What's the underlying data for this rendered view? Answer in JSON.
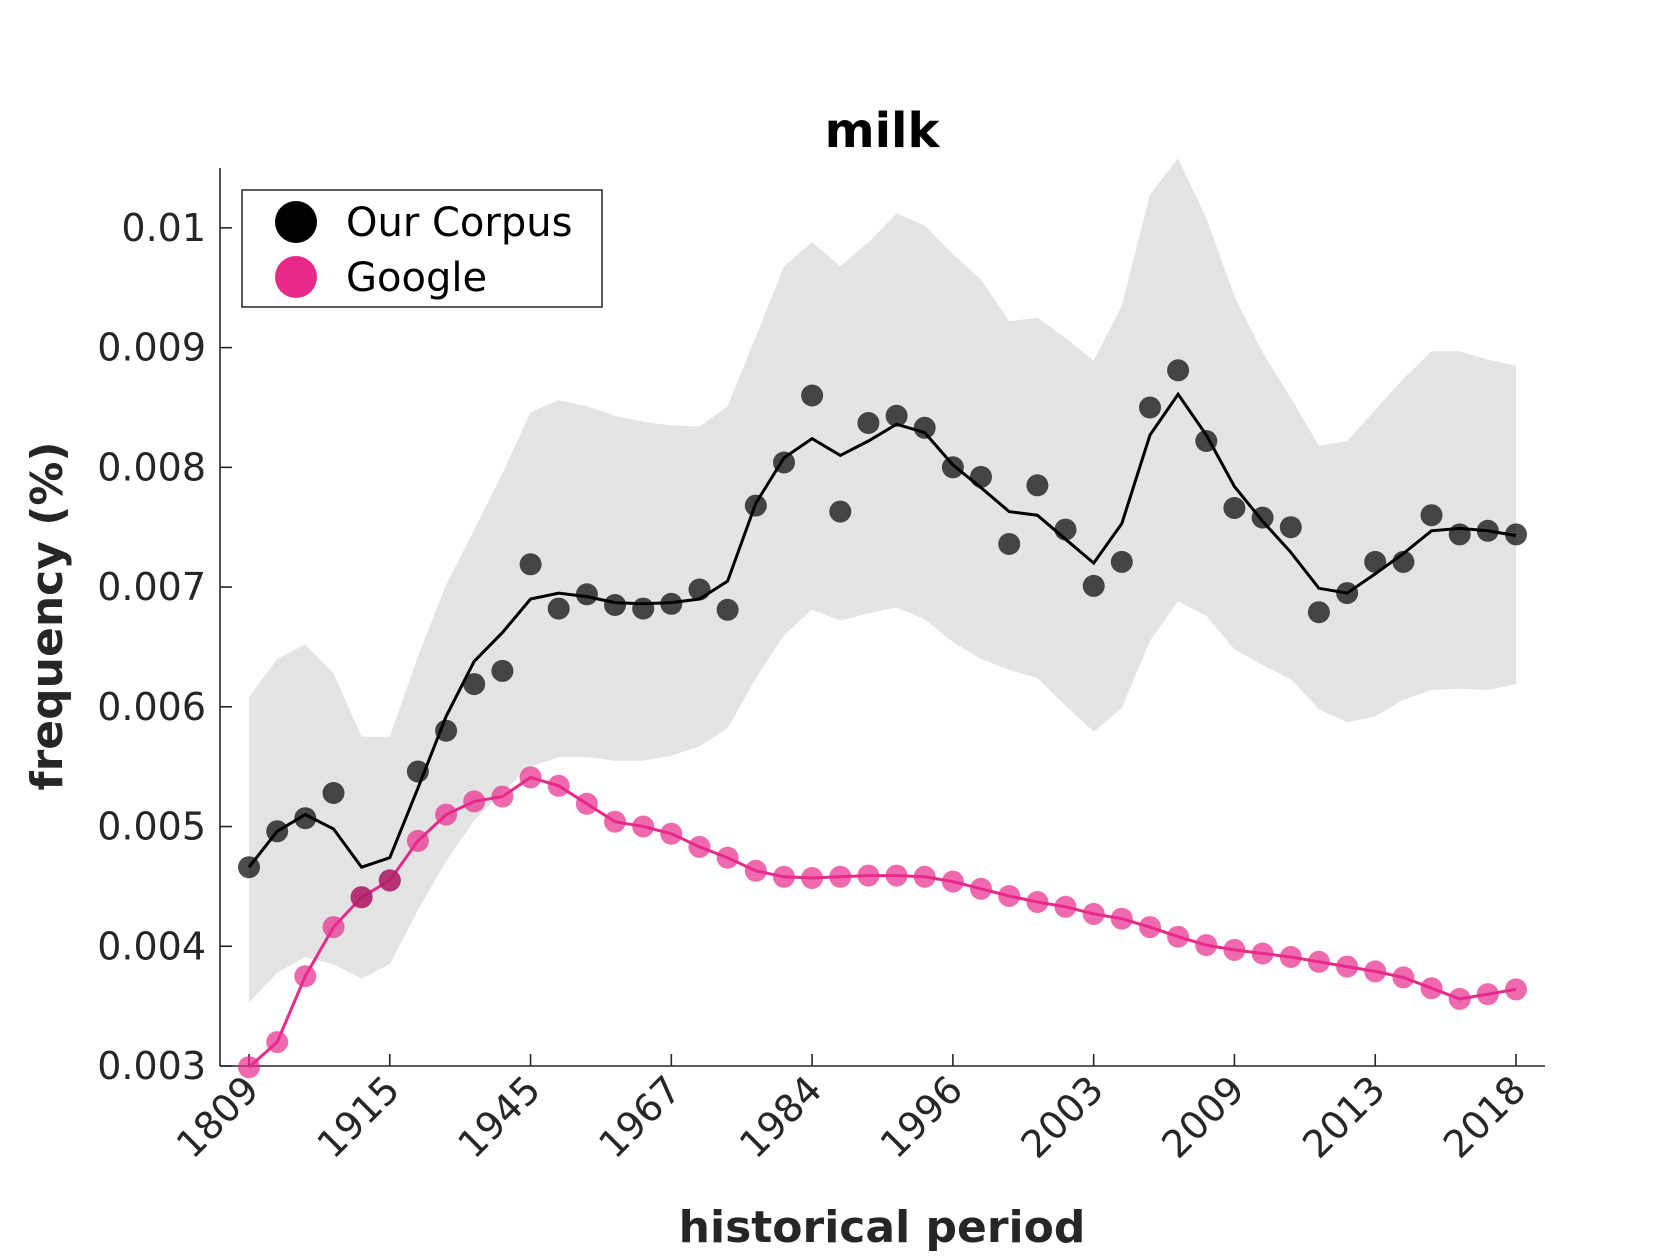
{
  "chart_data": {
    "type": "line",
    "title": "milk",
    "xlabel": "historical period",
    "ylabel": "frequency (%)",
    "ylim": [
      0.003,
      0.0105
    ],
    "y_ticks": [
      "0.003",
      "0.004",
      "0.005",
      "0.006",
      "0.007",
      "0.008",
      "0.009",
      "0.01"
    ],
    "y_tick_values": [
      0.003,
      0.004,
      0.005,
      0.006,
      0.007,
      0.008,
      0.009,
      0.01
    ],
    "x_tick_labels": [
      "1809",
      "1915",
      "1945",
      "1967",
      "1984",
      "1996",
      "2003",
      "2009",
      "2013",
      "2018"
    ],
    "x_tick_index": [
      1,
      6,
      11,
      16,
      21,
      26,
      31,
      36,
      41,
      46
    ],
    "x_count": 46,
    "legend_position": "top-left",
    "colors": {
      "corpus": "#000000",
      "google": "#e7298a",
      "band": "#e4e4e4"
    },
    "series": [
      {
        "name": "Our Corpus",
        "points": [
          0.00466,
          0.00496,
          0.00507,
          0.00528,
          0.00441,
          0.00455,
          0.00546,
          0.0058,
          0.00619,
          0.0063,
          0.00719,
          0.00682,
          0.00694,
          0.00685,
          0.00682,
          0.00686,
          0.00698,
          0.00681,
          0.00768,
          0.00804,
          0.0086,
          0.00763,
          0.00837,
          0.00843,
          0.00833,
          0.008,
          0.00792,
          0.00736,
          0.00785,
          0.00748,
          0.00701,
          0.00721,
          0.0085,
          0.00881,
          0.00822,
          0.00766,
          0.00758,
          0.0075,
          0.00679,
          0.00695,
          0.00721,
          0.00721,
          0.0076,
          0.00744,
          0.00747,
          0.00744
        ],
        "smooth": [
          0.00466,
          0.00496,
          0.0051,
          0.00498,
          0.00466,
          0.00474,
          0.00532,
          0.00592,
          0.00638,
          0.00662,
          0.0069,
          0.00695,
          0.00692,
          0.00687,
          0.00686,
          0.00687,
          0.0069,
          0.00705,
          0.0077,
          0.00808,
          0.00824,
          0.0081,
          0.00822,
          0.00836,
          0.00829,
          0.00802,
          0.00783,
          0.00763,
          0.0076,
          0.0074,
          0.0072,
          0.00753,
          0.00827,
          0.00861,
          0.00827,
          0.00784,
          0.00755,
          0.00729,
          0.00699,
          0.00695,
          0.00711,
          0.00728,
          0.00747,
          0.00749,
          0.00747,
          0.00743
        ],
        "band_upper": [
          0.00608,
          0.0064,
          0.00652,
          0.00628,
          0.00575,
          0.00575,
          0.00642,
          0.00702,
          0.00748,
          0.00795,
          0.00846,
          0.00856,
          0.00851,
          0.00843,
          0.00838,
          0.00835,
          0.00834,
          0.00851,
          0.00909,
          0.00968,
          0.00988,
          0.00968,
          0.00988,
          0.01012,
          0.01002,
          0.00978,
          0.00957,
          0.00922,
          0.00925,
          0.00908,
          0.00889,
          0.00935,
          0.01028,
          0.01058,
          0.01008,
          0.00943,
          0.00896,
          0.00858,
          0.00818,
          0.00822,
          0.00848,
          0.00874,
          0.00897,
          0.00897,
          0.0089,
          0.00885
        ],
        "band_lower": [
          0.00353,
          0.00378,
          0.00391,
          0.00385,
          0.00373,
          0.00385,
          0.0043,
          0.00471,
          0.00505,
          0.00529,
          0.0055,
          0.00558,
          0.00558,
          0.00555,
          0.00555,
          0.00559,
          0.00567,
          0.00582,
          0.00624,
          0.0066,
          0.00681,
          0.00672,
          0.00678,
          0.00683,
          0.00673,
          0.00654,
          0.0064,
          0.00631,
          0.00624,
          0.00601,
          0.00579,
          0.00599,
          0.00655,
          0.00688,
          0.00676,
          0.00648,
          0.00635,
          0.00623,
          0.00598,
          0.00587,
          0.00592,
          0.00606,
          0.00614,
          0.00615,
          0.00614,
          0.00619
        ]
      },
      {
        "name": "Google",
        "points": [
          0.00299,
          0.0032,
          0.00375,
          0.00416,
          0.00441,
          0.00455,
          0.00488,
          0.0051,
          0.00521,
          0.00525,
          0.00541,
          0.00534,
          0.00519,
          0.00504,
          0.005,
          0.00494,
          0.00483,
          0.00474,
          0.00463,
          0.00458,
          0.00457,
          0.00458,
          0.00459,
          0.00459,
          0.00458,
          0.00454,
          0.00448,
          0.00442,
          0.00437,
          0.00433,
          0.00427,
          0.00423,
          0.00416,
          0.00408,
          0.00401,
          0.00397,
          0.00394,
          0.00391,
          0.00387,
          0.00383,
          0.00379,
          0.00374,
          0.00365,
          0.00356,
          0.0036,
          0.00364
        ]
      }
    ]
  }
}
